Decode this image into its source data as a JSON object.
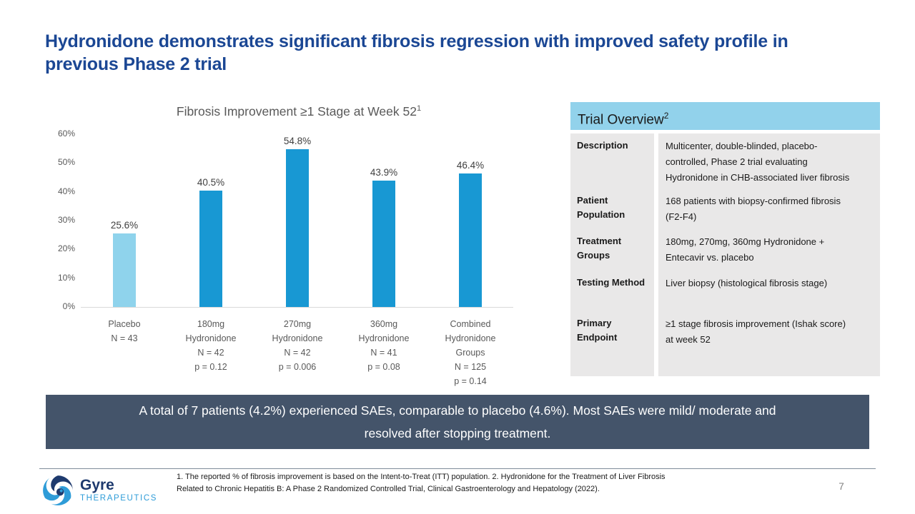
{
  "slide": {
    "title": "Hydronidone demonstrates significant fibrosis regression with improved safety profile in previous Phase 2 trial"
  },
  "chart_data": {
    "type": "bar",
    "title": "Fibrosis Improvement ≥1 Stage at Week 52",
    "title_superscript": "1",
    "categories": [
      [
        "Placebo",
        "N = 43"
      ],
      [
        "180mg",
        "Hydronidone",
        "N = 42",
        "p = 0.12"
      ],
      [
        "270mg",
        "Hydronidone",
        "N = 42",
        "p = 0.006"
      ],
      [
        "360mg",
        "Hydronidone",
        "N = 41",
        "p = 0.08"
      ],
      [
        "Combined",
        "Hydronidone",
        "Groups",
        "N = 125",
        "p = 0.14"
      ]
    ],
    "values": [
      25.6,
      40.5,
      54.8,
      43.9,
      46.4
    ],
    "value_labels": [
      "25.6%",
      "40.5%",
      "54.8%",
      "43.9%",
      "46.4%"
    ],
    "ylim": [
      0,
      60
    ],
    "ytick_step": 10,
    "ytick_labels": [
      "0%",
      "10%",
      "20%",
      "30%",
      "40%",
      "50%",
      "60%"
    ],
    "bar_colors": [
      "#8FD3EC",
      "#1898D3",
      "#1898D3",
      "#1898D3",
      "#1898D3"
    ],
    "grid": false,
    "legend": null,
    "xlabel": "",
    "ylabel": ""
  },
  "trial_overview": {
    "header": "Trial Overview",
    "header_superscript": "2",
    "rows": [
      {
        "label": "Description",
        "value": "Multicenter, double-blinded, placebo-\ncontrolled, Phase 2 trial evaluating\nHydronidone in CHB-associated liver fibrosis"
      },
      {
        "label": "Patient Population",
        "value": "168 patients with biopsy-confirmed fibrosis\n(F2-F4)"
      },
      {
        "label": "Treatment Groups",
        "value": "180mg, 270mg, 360mg Hydronidone +\nEntecavir vs. placebo"
      },
      {
        "label": "Testing Method",
        "value": "Liver biopsy (histological fibrosis stage)"
      },
      {
        "label": "Primary Endpoint",
        "value": "≥1 stage fibrosis improvement (Ishak score)\nat week 52"
      }
    ]
  },
  "callout": {
    "text": "A total of 7 patients (4.2%) experienced SAEs, comparable to placebo (4.6%). Most SAEs were mild/ moderate and\nresolved after stopping treatment."
  },
  "footer": {
    "logo_primary": "Gyre",
    "logo_secondary": "THERAPEUTICS",
    "footnote": "1. The reported % of fibrosis improvement is based on the Intent-to-Treat (ITT) population. 2. Hydronidone for the Treatment of Liver Fibrosis\nRelated to Chronic Hepatitis B: A Phase 2 Randomized Controlled Trial, Clinical Gastroenterology and Hepatology (2022).",
    "page_number": "7"
  },
  "colors": {
    "title_blue": "#1B4794",
    "bar_blue": "#1898D3",
    "bar_light_blue": "#8FD3EC",
    "table_header_bg": "#92D2EB",
    "table_body_bg": "#E9E8E8",
    "callout_bg": "#44546A",
    "axis_text": "#595959",
    "logo_navy": "#1E3A6E",
    "logo_blue": "#2E9CD8"
  }
}
